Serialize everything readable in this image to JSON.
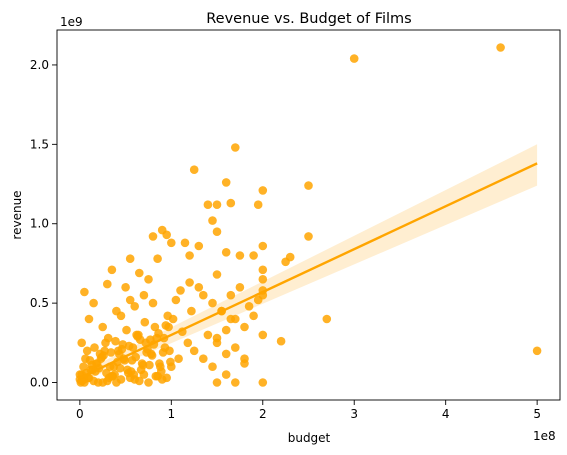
{
  "chart_data": {
    "type": "scatter",
    "title": "Revenue vs. Budget of Films",
    "xlabel": "budget",
    "ylabel": "revenue",
    "x_offset_label": "1e8",
    "y_offset_label": "1e9",
    "x_tick_values": [
      0,
      1,
      2,
      3,
      4,
      5
    ],
    "x_tick_labels": [
      "0",
      "1",
      "2",
      "3",
      "4",
      "5"
    ],
    "y_tick_values": [
      0.0,
      0.5,
      1.0,
      1.5,
      2.0
    ],
    "y_tick_labels": [
      "0.0",
      "0.5",
      "1.0",
      "1.5",
      "2.0"
    ],
    "xlim": [
      -0.25,
      5.25
    ],
    "ylim": [
      -0.11,
      2.22
    ],
    "grid": false,
    "colors": {
      "points": "#FFA500",
      "line": "#FFA500",
      "band": "#FFE8C2"
    },
    "regression": {
      "x": [
        0,
        5
      ],
      "y": [
        0.03,
        1.38
      ],
      "ci_upper": [
        0.06,
        1.5
      ],
      "ci_lower": [
        0.0,
        1.24
      ]
    },
    "series": [
      {
        "x": [
          4.6,
          3.0,
          1.7,
          1.25,
          1.6,
          2.0,
          2.5,
          1.4,
          1.5,
          1.65,
          1.95,
          1.45,
          1.5,
          1.15,
          1.3,
          1.2,
          1.6,
          1.75,
          1.9,
          2.0,
          1.5,
          2.3,
          2.25,
          2.0,
          0.8,
          0.9,
          0.95,
          1.0,
          0.85,
          0.55,
          0.35,
          0.65,
          2.5,
          2.7,
          5.0,
          2.2,
          2.0,
          1.5,
          1.7,
          1.8,
          1.6,
          1.45,
          0.05,
          0.15,
          0.3,
          0.4,
          0.5,
          0.6,
          0.7,
          0.75,
          0.55,
          0.1,
          0.25,
          0.45,
          0.8,
          1.05,
          1.1,
          1.2,
          1.3,
          1.35,
          1.45,
          1.55,
          1.65,
          1.75,
          1.85,
          1.95,
          2.0,
          1.9,
          1.8,
          1.7,
          1.6,
          1.4,
          1.5,
          0.02,
          0.04,
          0.06,
          0.08,
          0.12,
          0.18,
          0.22,
          0.28,
          0.33,
          0.38,
          0.42,
          0.48,
          0.52,
          0.58,
          0.62,
          0.68,
          0.72,
          0.78,
          0.82,
          0.88,
          0.92,
          0.98,
          1.02,
          1.08,
          1.12,
          1.18,
          1.22,
          0.03,
          0.07,
          0.11,
          0.16,
          0.21,
          0.26,
          0.31,
          0.36,
          0.41,
          0.46,
          0.51,
          0.56,
          0.61,
          0.66,
          0.71,
          0.76,
          0.81,
          0.86,
          0.91,
          0.96,
          0.01,
          0.09,
          0.14,
          0.19,
          0.24,
          0.29,
          0.34,
          0.39,
          0.44,
          0.49,
          0.54,
          0.59,
          0.64,
          0.69,
          0.74,
          0.79,
          0.84,
          0.89,
          0.94,
          0.99,
          0.02,
          0.05,
          0.13,
          0.17,
          0.23,
          0.27,
          0.32,
          0.37,
          0.43,
          0.47,
          0.53,
          0.57,
          0.63,
          0.67,
          0.73,
          0.77,
          0.83,
          0.87,
          0.93,
          0.97,
          1.5,
          1.6,
          1.7,
          1.8,
          2.0,
          1.55,
          1.65,
          1.25,
          1.35,
          2.0,
          2.0,
          1.0,
          0.6,
          0.3,
          0.2,
          0.1,
          0.05,
          0.0,
          0.0,
          0.02,
          0.7,
          0.9,
          0.85,
          0.65,
          0.4,
          0.45,
          0.55,
          0.35,
          0.25,
          0.15,
          0.75,
          0.95
        ],
        "y": [
          2.11,
          2.04,
          1.48,
          1.34,
          1.26,
          1.21,
          1.24,
          1.12,
          1.12,
          1.13,
          1.12,
          1.02,
          0.95,
          0.88,
          0.86,
          0.8,
          0.82,
          0.8,
          0.8,
          0.86,
          0.68,
          0.79,
          0.76,
          0.71,
          0.92,
          0.96,
          0.93,
          0.88,
          0.78,
          0.78,
          0.71,
          0.69,
          0.92,
          0.4,
          0.2,
          0.26,
          0.0,
          0.0,
          0.0,
          0.15,
          0.05,
          0.1,
          0.57,
          0.5,
          0.62,
          0.45,
          0.6,
          0.48,
          0.55,
          0.65,
          0.52,
          0.4,
          0.35,
          0.42,
          0.5,
          0.52,
          0.58,
          0.63,
          0.6,
          0.55,
          0.5,
          0.45,
          0.55,
          0.6,
          0.48,
          0.52,
          0.55,
          0.42,
          0.35,
          0.4,
          0.33,
          0.3,
          0.25,
          0.05,
          0.1,
          0.15,
          0.2,
          0.08,
          0.12,
          0.18,
          0.25,
          0.1,
          0.05,
          0.2,
          0.15,
          0.08,
          0.22,
          0.3,
          0.12,
          0.25,
          0.18,
          0.35,
          0.1,
          0.28,
          0.2,
          0.4,
          0.15,
          0.32,
          0.25,
          0.45,
          0.02,
          0.06,
          0.14,
          0.22,
          0.09,
          0.17,
          0.28,
          0.04,
          0.13,
          0.21,
          0.33,
          0.07,
          0.16,
          0.27,
          0.38,
          0.11,
          0.24,
          0.31,
          0.19,
          0.42,
          0.0,
          0.03,
          0.08,
          0.12,
          0.16,
          0.06,
          0.19,
          0.26,
          0.09,
          0.14,
          0.23,
          0.05,
          0.3,
          0.11,
          0.21,
          0.17,
          0.28,
          0.07,
          0.36,
          0.13,
          0.25,
          0.02,
          0.11,
          0.07,
          0.15,
          0.2,
          0.03,
          0.1,
          0.18,
          0.24,
          0.06,
          0.14,
          0.29,
          0.08,
          0.19,
          0.27,
          0.04,
          0.12,
          0.22,
          0.35,
          0.28,
          0.18,
          0.22,
          0.12,
          0.3,
          0.45,
          0.4,
          0.2,
          0.15,
          0.58,
          0.65,
          0.1,
          0.02,
          0.01,
          0.0,
          0.03,
          0.0,
          0.02,
          0.05,
          0.01,
          0.05,
          0.02,
          0.04,
          0.01,
          0.0,
          0.02,
          0.03,
          0.04,
          0.0,
          0.01,
          0.0,
          0.03
        ]
      }
    ]
  }
}
